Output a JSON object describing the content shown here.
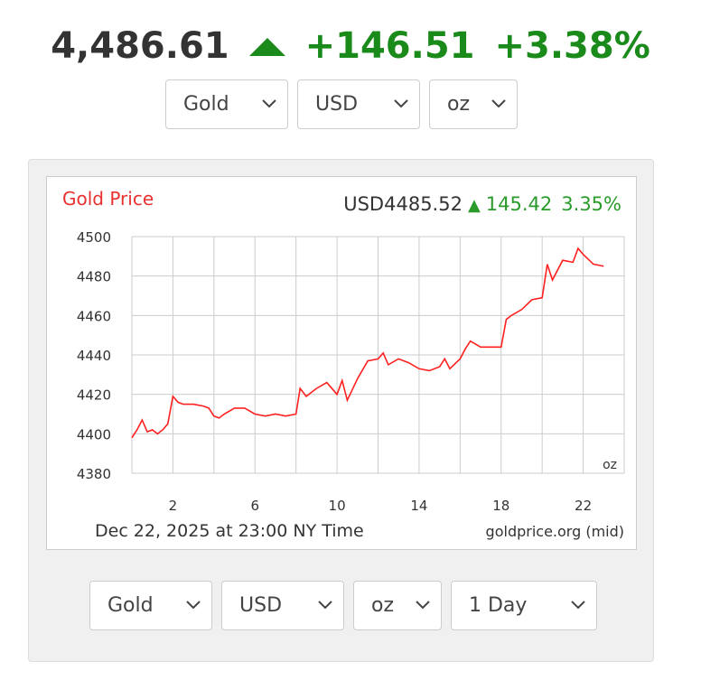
{
  "header": {
    "price": "4,486.61",
    "change": "+146.51",
    "change_percent": "+3.38%",
    "selects": [
      "Gold",
      "USD",
      "oz"
    ]
  },
  "controls": [
    "Gold",
    "USD",
    "oz",
    "1 Day"
  ],
  "chart_data": {
    "type": "line",
    "title": "Gold Price",
    "current": "USD4485.52",
    "change": "145.42",
    "change_percent": "3.35%",
    "unit": "oz",
    "footer": "Dec 22, 2025 at 23:00 NY Time",
    "source": "goldprice.org (mid)",
    "x": [
      0,
      0.25,
      0.5,
      0.75,
      1,
      1.25,
      1.5,
      1.75,
      2,
      2.25,
      2.5,
      3,
      3.5,
      3.75,
      4,
      4.25,
      4.5,
      5,
      5.5,
      6,
      6.5,
      7,
      7.5,
      8,
      8.2,
      8.5,
      9,
      9.5,
      10,
      10.25,
      10.5,
      11,
      11.5,
      12,
      12.25,
      12.5,
      13,
      13.5,
      14,
      14.5,
      15,
      15.25,
      15.5,
      16,
      16.25,
      16.5,
      17,
      17.5,
      18,
      18.25,
      18.5,
      19,
      19.5,
      20,
      20.25,
      20.5,
      21,
      21.5,
      21.75,
      22,
      22.5,
      23
    ],
    "series": [
      {
        "name": "Gold",
        "color": "#ff2020",
        "values": [
          4398,
          4402,
          4407,
          4401,
          4402,
          4400,
          4402,
          4405,
          4419,
          4416,
          4415,
          4415,
          4414,
          4413,
          4409,
          4408,
          4410,
          4413,
          4413,
          4410,
          4409,
          4410,
          4409,
          4410,
          4423,
          4419,
          4423,
          4426,
          4420,
          4427,
          4417,
          4428,
          4437,
          4438,
          4441,
          4435,
          4438,
          4436,
          4433,
          4432,
          4434,
          4438,
          4433,
          4438,
          4443,
          4447,
          4444,
          4444,
          4444,
          4458,
          4460,
          4463,
          4468,
          4469,
          4486,
          4478,
          4488,
          4487,
          4494,
          4491,
          4486,
          4485
        ]
      }
    ],
    "xlim": [
      0,
      24
    ],
    "ylim": [
      4380,
      4500
    ],
    "xticks": [
      2,
      6,
      10,
      14,
      18,
      22
    ],
    "xgrid": [
      0,
      4,
      8,
      12,
      16,
      20,
      24
    ],
    "yticks": [
      4380,
      4400,
      4420,
      4440,
      4460,
      4480,
      4500
    ],
    "grid": true
  }
}
